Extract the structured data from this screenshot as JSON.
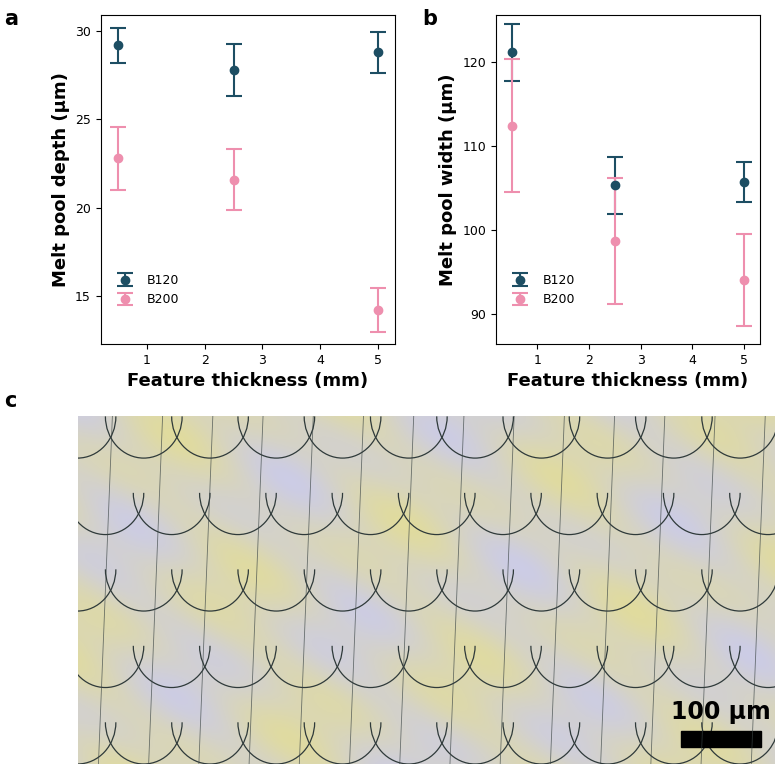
{
  "chart_data": [
    {
      "label": "a",
      "type": "scatter",
      "x_label": "Feature thickness (mm)",
      "y_label": "Melt pool depth (µm)",
      "xlim": [
        0.2,
        5.3
      ],
      "xticks": [
        1,
        2,
        3,
        4,
        5
      ],
      "ylim": [
        12.3,
        30.9
      ],
      "yticks": [
        15,
        20,
        25,
        30
      ],
      "legend": "lower left",
      "marker": "o",
      "series": [
        {
          "name": "B120",
          "color": "#1d4e63",
          "x": [
            0.5,
            2.5,
            5
          ],
          "values": [
            29.2,
            27.8,
            28.8
          ],
          "errors": [
            1.0,
            1.45,
            1.15
          ]
        },
        {
          "name": "B200",
          "color": "#ee8fae",
          "x": [
            0.5,
            2.5,
            5
          ],
          "values": [
            22.8,
            21.6,
            14.2
          ],
          "errors": [
            1.8,
            1.75,
            1.25
          ]
        }
      ]
    },
    {
      "label": "b",
      "type": "scatter",
      "x_label": "Feature thickness (mm)",
      "y_label": "Melt pool width (µm)",
      "xlim": [
        0.2,
        5.3
      ],
      "xticks": [
        1,
        2,
        3,
        4,
        5
      ],
      "ylim": [
        86.5,
        125.5
      ],
      "yticks": [
        90,
        100,
        110,
        120
      ],
      "legend": "lower left",
      "marker": "o",
      "series": [
        {
          "name": "B120",
          "color": "#1d4e63",
          "x": [
            0.5,
            2.5,
            5
          ],
          "values": [
            121.1,
            105.3,
            105.7
          ],
          "errors": [
            3.4,
            3.4,
            2.4
          ]
        },
        {
          "name": "B200",
          "color": "#ee8fae",
          "x": [
            0.5,
            2.5,
            5
          ],
          "values": [
            112.4,
            98.7,
            94.1
          ],
          "errors": [
            7.9,
            7.45,
            5.45
          ]
        }
      ]
    }
  ],
  "micrograph": {
    "label": "c",
    "scale_bar": "100 µm"
  }
}
